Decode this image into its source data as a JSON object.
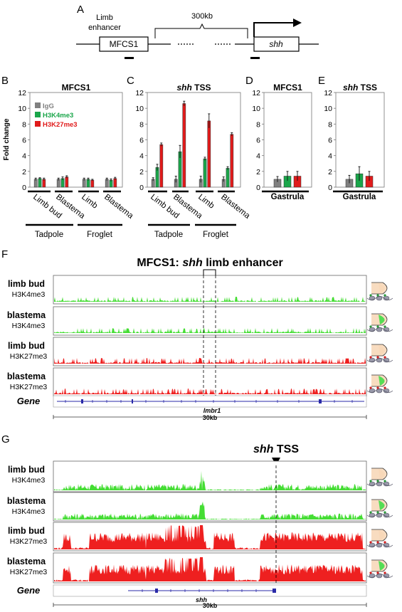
{
  "panel_letters": {
    "a": "A",
    "b": "B",
    "c": "C",
    "d": "D",
    "e": "E",
    "f": "F",
    "g": "G"
  },
  "panel_a": {
    "limb_enhancer_line1": "Limb",
    "limb_enhancer_line2": "enhancer",
    "distance": "300kb",
    "mfcs1_box": "MFCS1",
    "shh_box": "shh"
  },
  "colors": {
    "igg": "#808080",
    "h3k4me3": "#1aa64a",
    "h3k27me3": "#e01b1b",
    "track_green": "#44dd33",
    "track_red": "#ee2020",
    "gene_blue": "#2a2aa8"
  },
  "chart_data": [
    {
      "type": "bar",
      "panel": "B",
      "title": "MFCS1",
      "ylabel": "Fold change",
      "ylim": [
        0,
        12
      ],
      "yticks": [
        "0",
        "2",
        "4",
        "6",
        "8",
        "10",
        "12"
      ],
      "categories": [
        "Limb bud",
        "Blastema",
        "Limb",
        "Blastema"
      ],
      "groups": [
        "Tadpole",
        "Froglet"
      ],
      "legend": [
        "IgG",
        "H3K4me3",
        "H3K27me3"
      ],
      "series": [
        {
          "name": "IgG",
          "values": [
            1.0,
            1.0,
            1.0,
            1.0
          ],
          "errors": [
            0.15,
            0.15,
            0.15,
            0.15
          ]
        },
        {
          "name": "H3K4me3",
          "values": [
            1.1,
            1.1,
            1.0,
            0.9
          ],
          "errors": [
            0.1,
            0.2,
            0.15,
            0.15
          ]
        },
        {
          "name": "H3K27me3",
          "values": [
            1.0,
            1.3,
            0.9,
            1.1
          ],
          "errors": [
            0.15,
            0.15,
            0.1,
            0.15
          ]
        }
      ]
    },
    {
      "type": "bar",
      "panel": "C",
      "title": "shh TSS",
      "ylim": [
        0,
        12
      ],
      "yticks": [
        "0",
        "2",
        "4",
        "6",
        "8",
        "10",
        "12"
      ],
      "categories": [
        "Limb bud",
        "Blastema",
        "Limb",
        "Blastema"
      ],
      "groups": [
        "Tadpole",
        "Froglet"
      ],
      "series": [
        {
          "name": "IgG",
          "values": [
            1.0,
            1.0,
            1.0,
            1.0
          ],
          "errors": [
            0.2,
            0.4,
            0.4,
            0.3
          ]
        },
        {
          "name": "H3K4me3",
          "values": [
            2.5,
            4.5,
            3.6,
            2.4
          ],
          "errors": [
            0.4,
            0.8,
            0.2,
            0.2
          ]
        },
        {
          "name": "H3K27me3",
          "values": [
            5.4,
            10.6,
            8.4,
            6.7
          ],
          "errors": [
            0.2,
            0.3,
            0.9,
            0.2
          ]
        }
      ]
    },
    {
      "type": "bar",
      "panel": "D",
      "title": "MFCS1",
      "ylim": [
        0,
        12
      ],
      "yticks": [
        "0",
        "2",
        "4",
        "6",
        "8",
        "10",
        "12"
      ],
      "categories": [
        "Gastrula"
      ],
      "series": [
        {
          "name": "IgG",
          "values": [
            1.0
          ],
          "errors": [
            0.35
          ]
        },
        {
          "name": "H3K4me3",
          "values": [
            1.4
          ],
          "errors": [
            0.6
          ]
        },
        {
          "name": "H3K27me3",
          "values": [
            1.4
          ],
          "errors": [
            0.6
          ]
        }
      ]
    },
    {
      "type": "bar",
      "panel": "E",
      "title": "shh TSS",
      "ylim": [
        0,
        12
      ],
      "yticks": [
        "0",
        "2",
        "4",
        "6",
        "8",
        "10",
        "12"
      ],
      "categories": [
        "Gastrula"
      ],
      "series": [
        {
          "name": "IgG",
          "values": [
            1.0
          ],
          "errors": [
            0.5
          ]
        },
        {
          "name": "H3K4me3",
          "values": [
            1.7
          ],
          "errors": [
            0.9
          ]
        },
        {
          "name": "H3K27me3",
          "values": [
            1.4
          ],
          "errors": [
            0.6
          ]
        }
      ]
    }
  ],
  "panel_f": {
    "title_prefix": "MFCS1: ",
    "title_italic": "shh",
    "title_suffix": " limb enhancer",
    "tracks": [
      {
        "sample": "limb bud",
        "mark": "H3K4me3"
      },
      {
        "sample": "blastema",
        "mark": "H3K4me3"
      },
      {
        "sample": "limb bud",
        "mark": "H3K27me3"
      },
      {
        "sample": "blastema",
        "mark": "H3K27me3"
      }
    ],
    "gene_label": "Gene",
    "gene_name": "lmbr1",
    "scale": "30kb"
  },
  "panel_g": {
    "tss_italic": "shh",
    "tss_suffix": " TSS",
    "tracks": [
      {
        "sample": "limb bud",
        "mark": "H3K4me3"
      },
      {
        "sample": "blastema",
        "mark": "H3K4me3"
      },
      {
        "sample": "limb bud",
        "mark": "H3K27me3"
      },
      {
        "sample": "blastema",
        "mark": "H3K27me3"
      }
    ],
    "gene_label": "Gene",
    "gene_name": "shh",
    "scale": "30kb"
  }
}
